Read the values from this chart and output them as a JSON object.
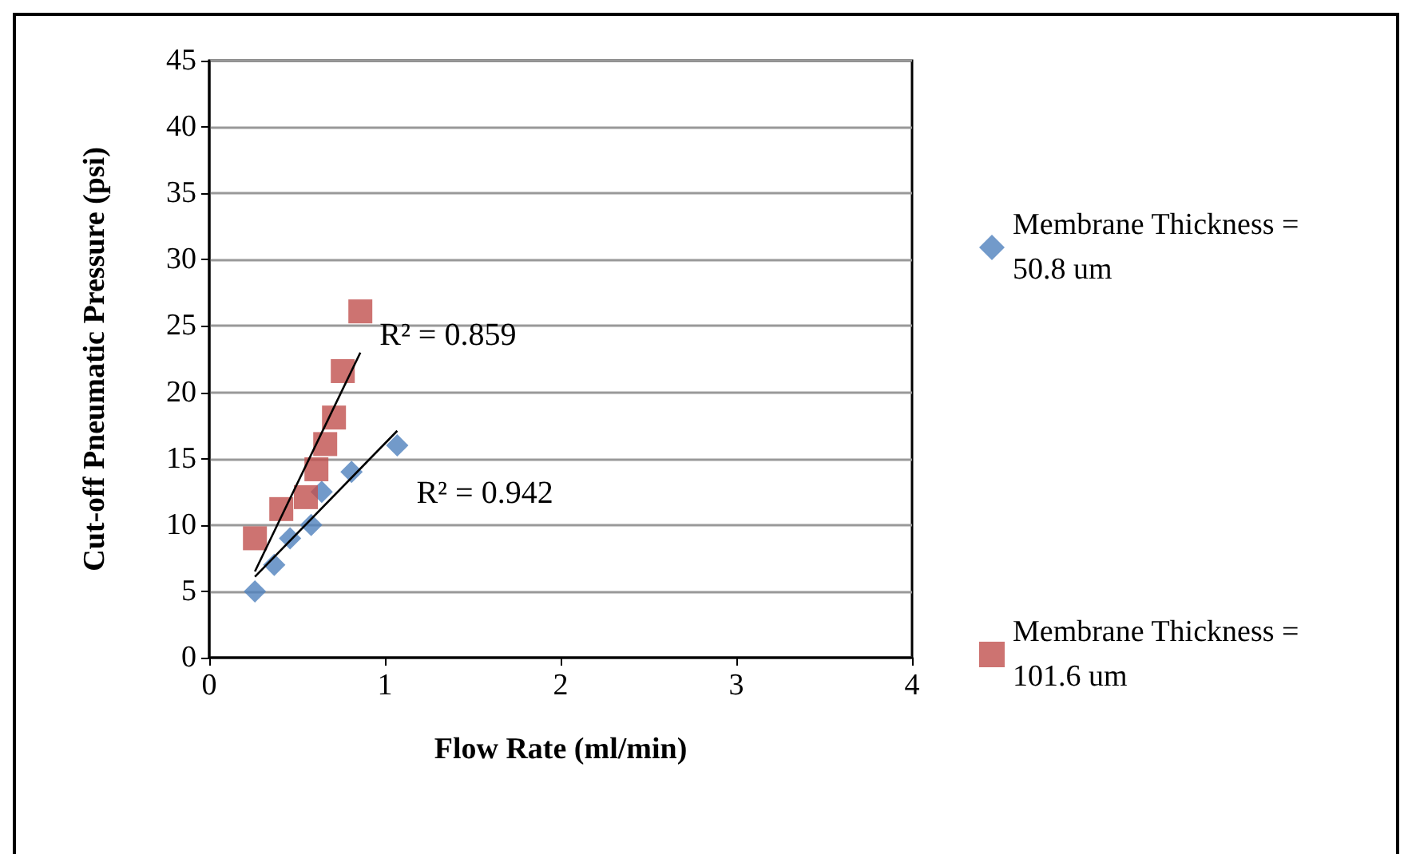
{
  "chart_data": {
    "type": "scatter",
    "xlabel": "Flow Rate (ml/min)",
    "ylabel": "Cut-off Pneumatic Pressure (psi)",
    "series": [
      {
        "name": "Membrane Thickness = 50.8 um",
        "color": "#4f81bd",
        "marker": "diamond",
        "x": [
          0.26,
          0.37,
          0.46,
          0.58,
          0.64,
          0.81,
          1.07
        ],
        "values": [
          5,
          7,
          9,
          10,
          12.5,
          14,
          16
        ]
      },
      {
        "name": "Membrane Thickness = 101.6 um",
        "color": "#c0504d",
        "marker": "square",
        "x": [
          0.26,
          0.41,
          0.55,
          0.61,
          0.66,
          0.71,
          0.76,
          0.86
        ],
        "values": [
          9,
          11.2,
          12.1,
          14.2,
          16.1,
          18.1,
          21.6,
          26.1
        ]
      },
      {
        "type": "line",
        "color": "#000000",
        "x": [
          0.26,
          0.86
        ],
        "values": [
          6.5,
          23
        ]
      },
      {
        "type": "line",
        "color": "#000000",
        "x": [
          0.26,
          1.07
        ],
        "values": [
          6.1,
          17.1
        ]
      }
    ],
    "annotations": [
      "R² = 0.859",
      "R² = 0.942"
    ],
    "xlim": [
      0,
      4
    ],
    "xticks": [
      0,
      1,
      2,
      3,
      4
    ],
    "ylim": [
      0,
      45
    ],
    "yticks": [
      0,
      5,
      10,
      15,
      20,
      25,
      30,
      35,
      40,
      45
    ],
    "grid": "y",
    "legend": "right"
  }
}
